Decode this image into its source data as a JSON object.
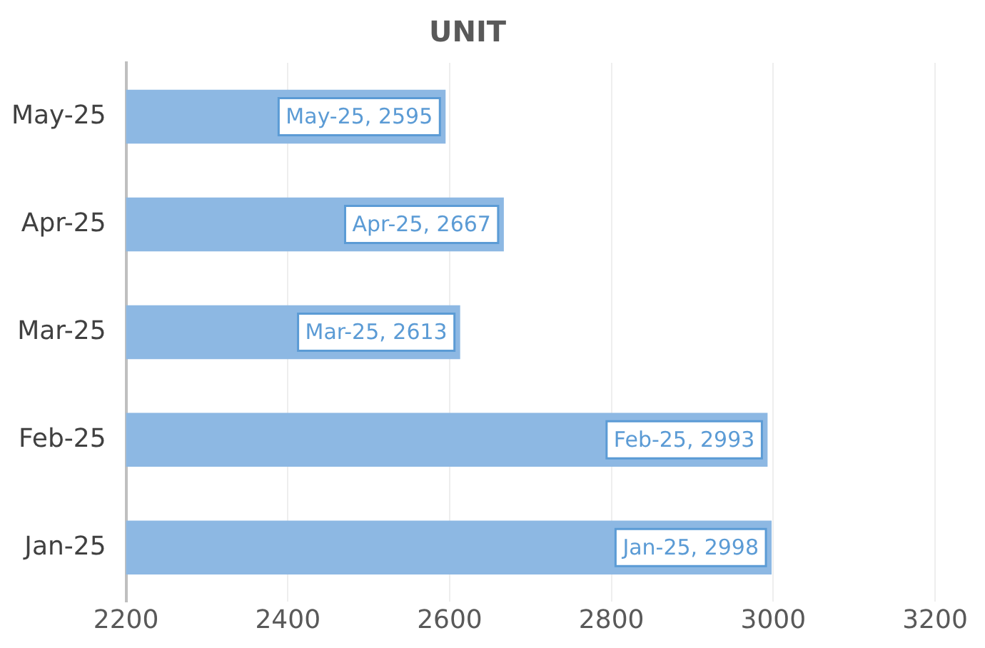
{
  "chart_data": {
    "type": "bar",
    "orientation": "horizontal",
    "title": "UNIT",
    "categories": [
      "May-25",
      "Apr-25",
      "Mar-25",
      "Feb-25",
      "Jan-25"
    ],
    "values": [
      2595,
      2667,
      2613,
      2993,
      2998
    ],
    "value_labels": [
      "May-25, 2595",
      "Apr-25, 2667",
      "Mar-25, 2613",
      "Feb-25, 2993",
      "Jan-25, 2998"
    ],
    "color": "#8db8e3",
    "xlim": [
      2200,
      3200
    ],
    "xticks": [
      2200,
      2400,
      2600,
      2800,
      3000,
      3200
    ],
    "grid": "x",
    "legend": false
  }
}
